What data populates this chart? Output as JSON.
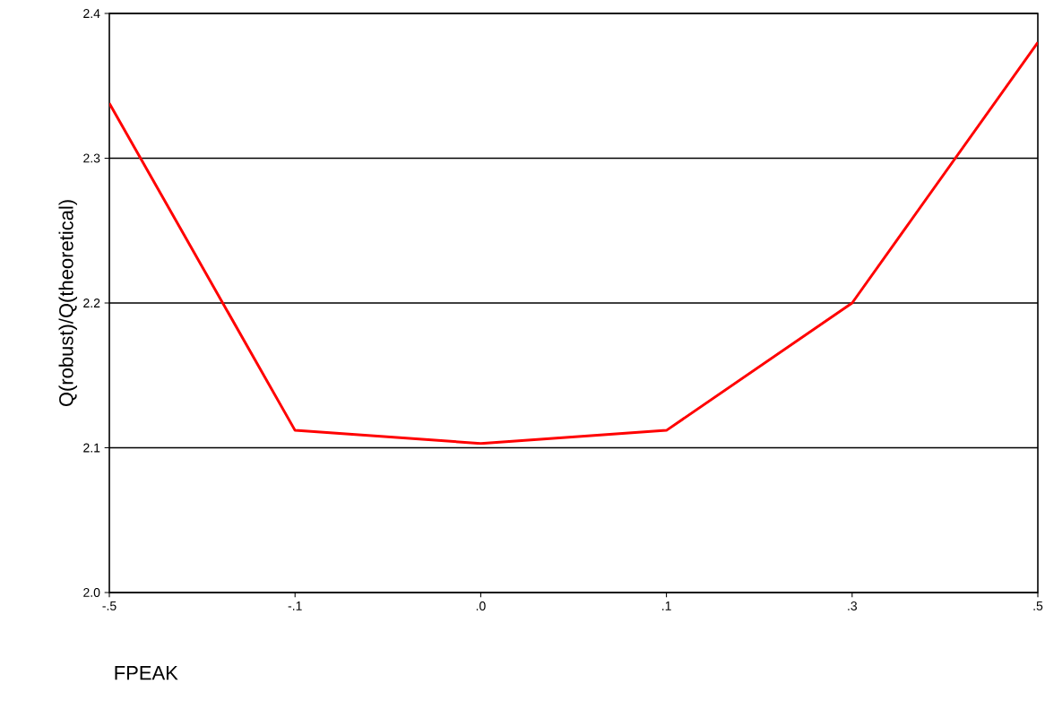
{
  "chart_data": {
    "type": "line",
    "xlabel": "FPEAK",
    "ylabel": "Q(robust)/Q(theoretical)",
    "categories": [
      "-.5",
      "-.1",
      ".0",
      ".1",
      ".3",
      ".5"
    ],
    "series": [
      {
        "color": "#ff0000",
        "values": [
          2.338,
          2.112,
          2.103,
          2.112,
          2.2,
          2.38
        ]
      }
    ],
    "ylim": [
      2.0,
      2.4
    ],
    "yticks": [
      {
        "value": 2.0,
        "label": "2.0"
      },
      {
        "value": 2.1,
        "label": "2.1"
      },
      {
        "value": 2.2,
        "label": "2.2"
      },
      {
        "value": 2.3,
        "label": "2.3"
      },
      {
        "value": 2.4,
        "label": "2.4"
      }
    ],
    "grid": "y",
    "marker": "none",
    "line_style": "solid"
  }
}
